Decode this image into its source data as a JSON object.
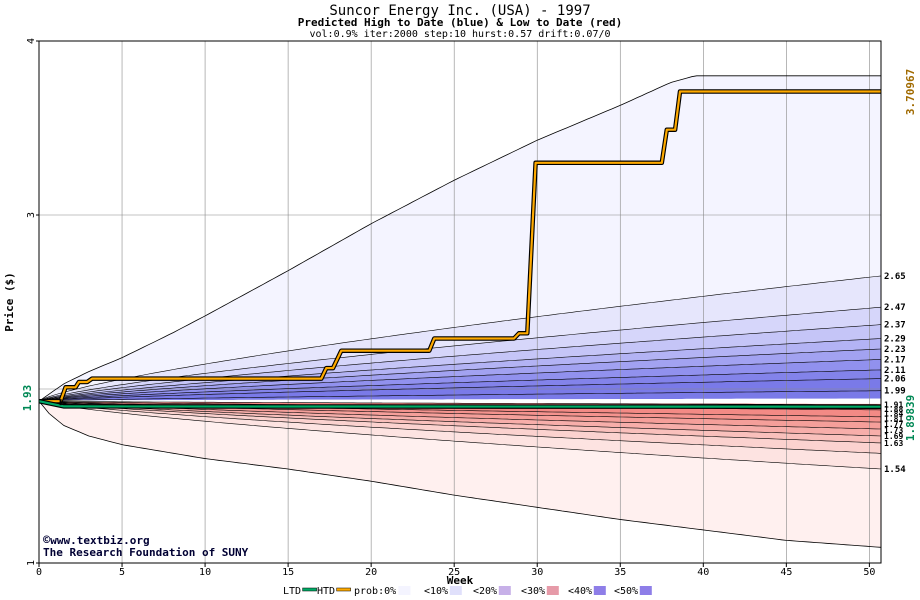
{
  "chart_data": {
    "type": "area",
    "title": "Suncor Energy Inc. (USA) - 1997",
    "subtitle": "Predicted High to Date (blue) &  Low to Date (red)",
    "params": "vol:0.9% iter:2000 step:10 hurst:0.57 drift:0.07/0",
    "xlabel": "Week",
    "ylabel": "Price ($)",
    "xlim": [
      0,
      50.7
    ],
    "ylim": [
      1,
      4
    ],
    "x_ticks": [
      0,
      5,
      10,
      15,
      20,
      25,
      30,
      35,
      40,
      45,
      50
    ],
    "y_ticks": [
      1,
      3,
      4
    ],
    "grid": true,
    "current_price": 1.93,
    "current_price_label": "1.93",
    "max_predicted": 3.70967,
    "max_label": "3.70967",
    "low_to_date": 1.89839,
    "low_label": "1.89839",
    "high_contour_labels": [
      "2.65",
      "2.47",
      "2.37",
      "2.29",
      "2.23",
      "2.17",
      "2.11",
      "2.06",
      "1.99"
    ],
    "high_contour_values": [
      2.65,
      2.47,
      2.37,
      2.29,
      2.23,
      2.17,
      2.11,
      2.06,
      1.99
    ],
    "low_contour_labels": [
      "1.91",
      "1.88",
      "1.84",
      "1.81",
      "1.77",
      "1.73",
      "1.69",
      "1.63",
      "1.54"
    ],
    "low_contour_values": [
      1.91,
      1.88,
      1.84,
      1.81,
      1.77,
      1.73,
      1.69,
      1.63,
      1.54
    ],
    "envelope_upper": [
      [
        0,
        1.93
      ],
      [
        0.6,
        1.97
      ],
      [
        1.5,
        2.03
      ],
      [
        3,
        2.1
      ],
      [
        5,
        2.18
      ],
      [
        8,
        2.32
      ],
      [
        10,
        2.42
      ],
      [
        15,
        2.68
      ],
      [
        20,
        2.95
      ],
      [
        25,
        3.2
      ],
      [
        30,
        3.43
      ],
      [
        35,
        3.63
      ],
      [
        38,
        3.76
      ],
      [
        39.5,
        3.8
      ],
      [
        50.7,
        3.8
      ]
    ],
    "envelope_lower": [
      [
        0,
        1.93
      ],
      [
        0.6,
        1.86
      ],
      [
        1.5,
        1.79
      ],
      [
        3,
        1.73
      ],
      [
        5,
        1.68
      ],
      [
        10,
        1.6
      ],
      [
        15,
        1.54
      ],
      [
        20,
        1.47
      ],
      [
        25,
        1.39
      ],
      [
        30,
        1.32
      ],
      [
        35,
        1.25
      ],
      [
        40,
        1.19
      ],
      [
        45,
        1.13
      ],
      [
        50.7,
        1.09
      ]
    ],
    "high_to_date": [
      [
        0,
        1.93
      ],
      [
        1.3,
        1.93
      ],
      [
        1.6,
        2.01
      ],
      [
        2.2,
        2.01
      ],
      [
        2.4,
        2.04
      ],
      [
        2.9,
        2.04
      ],
      [
        3.2,
        2.06
      ],
      [
        3.7,
        2.06
      ],
      [
        17,
        2.06
      ],
      [
        17.3,
        2.12
      ],
      [
        17.7,
        2.12
      ],
      [
        18.2,
        2.22
      ],
      [
        23.5,
        2.22
      ],
      [
        23.8,
        2.29
      ],
      [
        28.6,
        2.29
      ],
      [
        28.9,
        2.32
      ],
      [
        29.4,
        2.32
      ],
      [
        29.9,
        3.3
      ],
      [
        37.5,
        3.3
      ],
      [
        37.8,
        3.49
      ],
      [
        38.3,
        3.49
      ],
      [
        38.6,
        3.71
      ],
      [
        50.7,
        3.71
      ]
    ],
    "low_to_date_series": [
      [
        0,
        1.93
      ],
      [
        1.5,
        1.9
      ],
      [
        50.7,
        1.898
      ]
    ],
    "legend": {
      "items": [
        {
          "label": "LTD",
          "swatch": "#00aa66"
        },
        {
          "label": "HTD",
          "swatch": "#ffaa00"
        },
        {
          "label": "prob:0%",
          "swatch": "#ffffff"
        },
        {
          "label": "<10%",
          "swatch": "#f4f4ff"
        },
        {
          "label": "<20%",
          "swatch": "#e0e0fb"
        },
        {
          "label": "<30%",
          "swatch": "#c7b0e8"
        },
        {
          "label": "<40%",
          "swatch": "#e69aa8"
        },
        {
          "label": "<50%",
          "swatch": "#8e7ee8"
        }
      ]
    },
    "credit_site": "www.textbiz.org",
    "credit_org": "The Research Foundation of SUNY",
    "colors": {
      "high_accent": "#a06a00",
      "low_accent": "#008855",
      "htd_line": "#ffaa00",
      "ltd_line": "#00aa66",
      "grid": "#888888"
    }
  }
}
